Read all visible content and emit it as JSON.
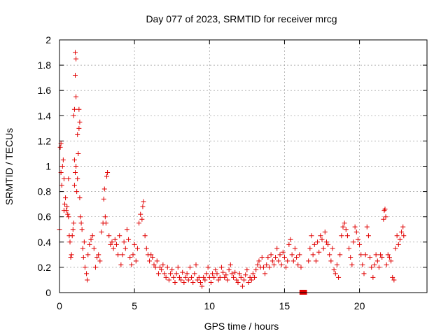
{
  "chart_data": {
    "type": "scatter",
    "title": "Day 077 of 2023, SRMTID for receiver mrcg",
    "xlabel": "GPS time / hours",
    "ylabel": "SRMTID / TECUs",
    "xlim": [
      0,
      24.5
    ],
    "ylim": [
      0,
      2
    ],
    "xticks": [
      0,
      5,
      10,
      15,
      20
    ],
    "xtick_labels": [
      "0",
      "5",
      "10",
      "15",
      "20"
    ],
    "yticks": [
      0,
      0.2,
      0.4,
      0.6,
      0.8,
      1,
      1.2,
      1.4,
      1.6,
      1.8,
      2
    ],
    "ytick_labels": [
      "0",
      "0.2",
      "0.4",
      "0.6",
      "0.8",
      "1",
      "1.2",
      "1.4",
      "1.6",
      "1.8",
      "2"
    ],
    "grid": true,
    "marker": "+",
    "marker_color": "#e00000",
    "gap_marker": {
      "x_start": 16.0,
      "x_end": 16.5,
      "y": 0,
      "color": "#e00000"
    },
    "series": [
      {
        "name": "SRMTID",
        "points": [
          [
            0.0,
            0.5
          ],
          [
            0.05,
            1.15
          ],
          [
            0.1,
            1.18
          ],
          [
            0.1,
            0.95
          ],
          [
            0.15,
            0.85
          ],
          [
            0.2,
            1.0
          ],
          [
            0.25,
            1.05
          ],
          [
            0.3,
            0.65
          ],
          [
            0.3,
            0.9
          ],
          [
            0.35,
            0.7
          ],
          [
            0.4,
            0.75
          ],
          [
            0.45,
            0.65
          ],
          [
            0.5,
            0.68
          ],
          [
            0.55,
            0.62
          ],
          [
            0.6,
            0.6
          ],
          [
            0.6,
            0.9
          ],
          [
            0.65,
            0.45
          ],
          [
            0.7,
            0.4
          ],
          [
            0.75,
            0.28
          ],
          [
            0.8,
            0.3
          ],
          [
            0.85,
            0.45
          ],
          [
            0.9,
            0.5
          ],
          [
            0.95,
            0.55
          ],
          [
            0.95,
            1.4
          ],
          [
            1.0,
            1.45
          ],
          [
            1.0,
            1.05
          ],
          [
            1.0,
            0.85
          ],
          [
            1.05,
            0.95
          ],
          [
            1.05,
            1.72
          ],
          [
            1.05,
            1.9
          ],
          [
            1.1,
            1.85
          ],
          [
            1.1,
            1.55
          ],
          [
            1.1,
            1.0
          ],
          [
            1.15,
            0.8
          ],
          [
            1.2,
            0.9
          ],
          [
            1.2,
            1.25
          ],
          [
            1.25,
            1.1
          ],
          [
            1.3,
            1.3
          ],
          [
            1.3,
            1.45
          ],
          [
            1.35,
            1.35
          ],
          [
            1.35,
            0.75
          ],
          [
            1.4,
            0.6
          ],
          [
            1.45,
            0.55
          ],
          [
            1.5,
            0.5
          ],
          [
            1.55,
            0.35
          ],
          [
            1.6,
            0.28
          ],
          [
            1.65,
            0.4
          ],
          [
            1.7,
            0.2
          ],
          [
            1.8,
            0.15
          ],
          [
            1.85,
            0.1
          ],
          [
            1.9,
            0.3
          ],
          [
            2.0,
            0.38
          ],
          [
            2.1,
            0.42
          ],
          [
            2.2,
            0.45
          ],
          [
            2.3,
            0.35
          ],
          [
            2.4,
            0.2
          ],
          [
            2.5,
            0.28
          ],
          [
            2.6,
            0.3
          ],
          [
            2.7,
            0.25
          ],
          [
            2.8,
            0.48
          ],
          [
            2.9,
            0.55
          ],
          [
            2.95,
            0.74
          ],
          [
            3.0,
            0.82
          ],
          [
            3.05,
            0.6
          ],
          [
            3.1,
            0.55
          ],
          [
            3.15,
            0.92
          ],
          [
            3.2,
            0.95
          ],
          [
            3.3,
            0.45
          ],
          [
            3.4,
            0.38
          ],
          [
            3.5,
            0.4
          ],
          [
            3.6,
            0.35
          ],
          [
            3.7,
            0.42
          ],
          [
            3.8,
            0.38
          ],
          [
            3.9,
            0.3
          ],
          [
            4.0,
            0.45
          ],
          [
            4.1,
            0.22
          ],
          [
            4.2,
            0.3
          ],
          [
            4.3,
            0.4
          ],
          [
            4.4,
            0.35
          ],
          [
            4.5,
            0.5
          ],
          [
            4.6,
            0.42
          ],
          [
            4.7,
            0.28
          ],
          [
            4.8,
            0.22
          ],
          [
            4.9,
            0.3
          ],
          [
            5.0,
            0.38
          ],
          [
            5.1,
            0.25
          ],
          [
            5.2,
            0.35
          ],
          [
            5.3,
            0.55
          ],
          [
            5.4,
            0.62
          ],
          [
            5.5,
            0.58
          ],
          [
            5.55,
            0.68
          ],
          [
            5.6,
            0.72
          ],
          [
            5.7,
            0.45
          ],
          [
            5.8,
            0.35
          ],
          [
            5.9,
            0.3
          ],
          [
            6.0,
            0.25
          ],
          [
            6.1,
            0.3
          ],
          [
            6.2,
            0.28
          ],
          [
            6.3,
            0.22
          ],
          [
            6.4,
            0.2
          ],
          [
            6.5,
            0.25
          ],
          [
            6.6,
            0.15
          ],
          [
            6.7,
            0.2
          ],
          [
            6.8,
            0.18
          ],
          [
            6.9,
            0.22
          ],
          [
            7.0,
            0.15
          ],
          [
            7.1,
            0.12
          ],
          [
            7.2,
            0.2
          ],
          [
            7.3,
            0.1
          ],
          [
            7.4,
            0.15
          ],
          [
            7.5,
            0.18
          ],
          [
            7.6,
            0.12
          ],
          [
            7.7,
            0.08
          ],
          [
            7.8,
            0.15
          ],
          [
            7.9,
            0.2
          ],
          [
            8.0,
            0.12
          ],
          [
            8.1,
            0.1
          ],
          [
            8.2,
            0.16
          ],
          [
            8.3,
            0.08
          ],
          [
            8.4,
            0.12
          ],
          [
            8.5,
            0.15
          ],
          [
            8.6,
            0.1
          ],
          [
            8.7,
            0.2
          ],
          [
            8.8,
            0.12
          ],
          [
            8.9,
            0.08
          ],
          [
            9.0,
            0.15
          ],
          [
            9.1,
            0.22
          ],
          [
            9.2,
            0.1
          ],
          [
            9.3,
            0.12
          ],
          [
            9.4,
            0.08
          ],
          [
            9.5,
            0.05
          ],
          [
            9.6,
            0.12
          ],
          [
            9.7,
            0.1
          ],
          [
            9.8,
            0.15
          ],
          [
            9.9,
            0.2
          ],
          [
            10.0,
            0.12
          ],
          [
            10.1,
            0.08
          ],
          [
            10.2,
            0.15
          ],
          [
            10.3,
            0.12
          ],
          [
            10.4,
            0.18
          ],
          [
            10.5,
            0.15
          ],
          [
            10.6,
            0.1
          ],
          [
            10.7,
            0.12
          ],
          [
            10.8,
            0.2
          ],
          [
            10.9,
            0.16
          ],
          [
            11.0,
            0.12
          ],
          [
            11.1,
            0.14
          ],
          [
            11.2,
            0.1
          ],
          [
            11.3,
            0.18
          ],
          [
            11.4,
            0.22
          ],
          [
            11.5,
            0.15
          ],
          [
            11.6,
            0.12
          ],
          [
            11.7,
            0.16
          ],
          [
            11.8,
            0.1
          ],
          [
            11.9,
            0.08
          ],
          [
            12.0,
            0.15
          ],
          [
            12.1,
            0.12
          ],
          [
            12.2,
            0.05
          ],
          [
            12.3,
            0.1
          ],
          [
            12.4,
            0.14
          ],
          [
            12.5,
            0.18
          ],
          [
            12.6,
            0.08
          ],
          [
            12.7,
            0.12
          ],
          [
            12.8,
            0.1
          ],
          [
            12.9,
            0.15
          ],
          [
            13.0,
            0.12
          ],
          [
            13.1,
            0.18
          ],
          [
            13.2,
            0.22
          ],
          [
            13.3,
            0.25
          ],
          [
            13.4,
            0.2
          ],
          [
            13.5,
            0.28
          ],
          [
            13.6,
            0.2
          ],
          [
            13.7,
            0.15
          ],
          [
            13.8,
            0.22
          ],
          [
            13.9,
            0.28
          ],
          [
            14.0,
            0.2
          ],
          [
            14.1,
            0.3
          ],
          [
            14.2,
            0.25
          ],
          [
            14.3,
            0.22
          ],
          [
            14.4,
            0.28
          ],
          [
            14.5,
            0.35
          ],
          [
            14.6,
            0.25
          ],
          [
            14.7,
            0.3
          ],
          [
            14.8,
            0.22
          ],
          [
            14.9,
            0.32
          ],
          [
            15.0,
            0.28
          ],
          [
            15.1,
            0.2
          ],
          [
            15.2,
            0.25
          ],
          [
            15.3,
            0.38
          ],
          [
            15.4,
            0.42
          ],
          [
            15.5,
            0.3
          ],
          [
            15.6,
            0.25
          ],
          [
            15.7,
            0.35
          ],
          [
            15.8,
            0.28
          ],
          [
            15.9,
            0.22
          ],
          [
            16.0,
            0.3
          ],
          [
            16.1,
            0.2
          ],
          [
            16.6,
            0.25
          ],
          [
            16.7,
            0.35
          ],
          [
            16.8,
            0.45
          ],
          [
            16.9,
            0.3
          ],
          [
            17.0,
            0.38
          ],
          [
            17.1,
            0.25
          ],
          [
            17.2,
            0.4
          ],
          [
            17.3,
            0.32
          ],
          [
            17.4,
            0.45
          ],
          [
            17.5,
            0.42
          ],
          [
            17.6,
            0.35
          ],
          [
            17.7,
            0.48
          ],
          [
            17.8,
            0.4
          ],
          [
            17.9,
            0.38
          ],
          [
            18.0,
            0.3
          ],
          [
            18.1,
            0.25
          ],
          [
            18.2,
            0.35
          ],
          [
            18.3,
            0.18
          ],
          [
            18.4,
            0.15
          ],
          [
            18.5,
            0.22
          ],
          [
            18.6,
            0.12
          ],
          [
            18.7,
            0.3
          ],
          [
            18.8,
            0.45
          ],
          [
            18.9,
            0.52
          ],
          [
            19.0,
            0.55
          ],
          [
            19.1,
            0.5
          ],
          [
            19.2,
            0.45
          ],
          [
            19.3,
            0.35
          ],
          [
            19.4,
            0.28
          ],
          [
            19.5,
            0.22
          ],
          [
            19.6,
            0.4
          ],
          [
            19.7,
            0.52
          ],
          [
            19.8,
            0.48
          ],
          [
            19.9,
            0.42
          ],
          [
            20.0,
            0.38
          ],
          [
            20.1,
            0.3
          ],
          [
            20.2,
            0.22
          ],
          [
            20.3,
            0.15
          ],
          [
            20.4,
            0.3
          ],
          [
            20.5,
            0.52
          ],
          [
            20.6,
            0.45
          ],
          [
            20.7,
            0.28
          ],
          [
            20.8,
            0.2
          ],
          [
            20.9,
            0.12
          ],
          [
            21.0,
            0.22
          ],
          [
            21.1,
            0.3
          ],
          [
            21.2,
            0.25
          ],
          [
            21.3,
            0.2
          ],
          [
            21.4,
            0.3
          ],
          [
            21.5,
            0.28
          ],
          [
            21.6,
            0.58
          ],
          [
            21.65,
            0.65
          ],
          [
            21.7,
            0.66
          ],
          [
            21.75,
            0.6
          ],
          [
            21.8,
            0.22
          ],
          [
            21.9,
            0.3
          ],
          [
            22.0,
            0.28
          ],
          [
            22.1,
            0.25
          ],
          [
            22.2,
            0.12
          ],
          [
            22.3,
            0.1
          ],
          [
            22.4,
            0.35
          ],
          [
            22.5,
            0.45
          ],
          [
            22.6,
            0.38
          ],
          [
            22.7,
            0.42
          ],
          [
            22.8,
            0.48
          ],
          [
            22.9,
            0.52
          ],
          [
            22.95,
            0.45
          ]
        ]
      }
    ]
  }
}
